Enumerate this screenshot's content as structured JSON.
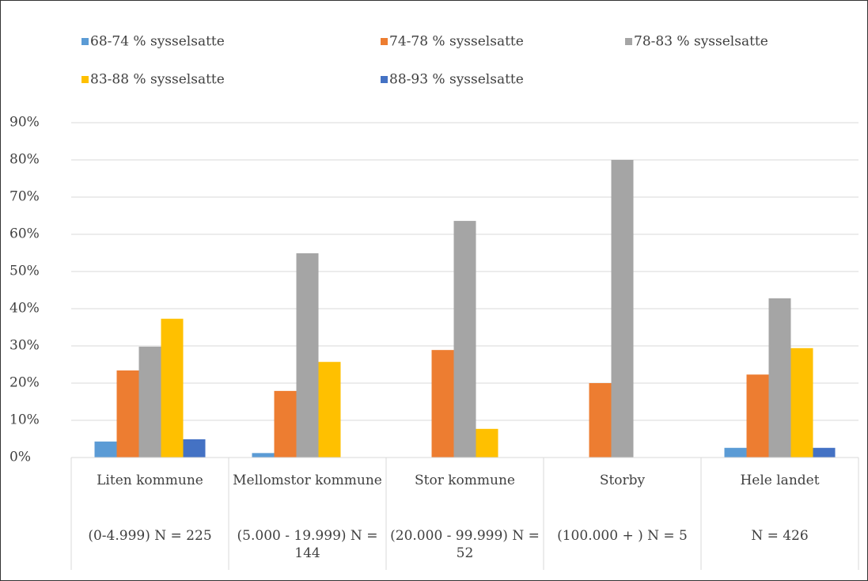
{
  "chart_data": {
    "type": "bar",
    "categories": [
      [
        "Liten kommune",
        "(0-4.999) N = 225"
      ],
      [
        "Mellomstor kommune",
        "(5.000 - 19.999) N = 144"
      ],
      [
        "Stor kommune",
        "(20.000 - 99.999) N = 52"
      ],
      [
        "Storby",
        "(100.000 + ) N = 5"
      ],
      [
        "Hele landet",
        "N = 426"
      ]
    ],
    "series": [
      {
        "name": "68-74 % sysselsatte",
        "color": "#5b9bd5",
        "values": [
          4.3,
          1.2,
          0,
          0,
          2.6
        ]
      },
      {
        "name": "74-78 % sysselsatte",
        "color": "#ed7d31",
        "values": [
          23.4,
          17.9,
          28.9,
          20,
          22.3
        ]
      },
      {
        "name": "78-83 % sysselsatte",
        "color": "#a5a5a5",
        "values": [
          29.8,
          54.9,
          63.6,
          80,
          42.8
        ]
      },
      {
        "name": "83-88 % sysselsatte",
        "color": "#ffc000",
        "values": [
          37.3,
          25.7,
          7.7,
          0,
          29.4
        ]
      },
      {
        "name": "88-93 % sysselsatte",
        "color": "#4472c4",
        "values": [
          4.9,
          0,
          0,
          0,
          2.6
        ]
      }
    ],
    "ylim": [
      0,
      90
    ],
    "yticks": [
      {
        "value": 0,
        "label": "0%"
      },
      {
        "value": 10,
        "label": "10%"
      },
      {
        "value": 20,
        "label": "20%"
      },
      {
        "value": 30,
        "label": "30%"
      },
      {
        "value": 40,
        "label": "40%"
      },
      {
        "value": 50,
        "label": "50%"
      },
      {
        "value": 60,
        "label": "60%"
      },
      {
        "value": 70,
        "label": "70%"
      },
      {
        "value": 80,
        "label": "80%"
      },
      {
        "value": 90,
        "label": "90%"
      }
    ],
    "grid": true,
    "legend": "top"
  }
}
